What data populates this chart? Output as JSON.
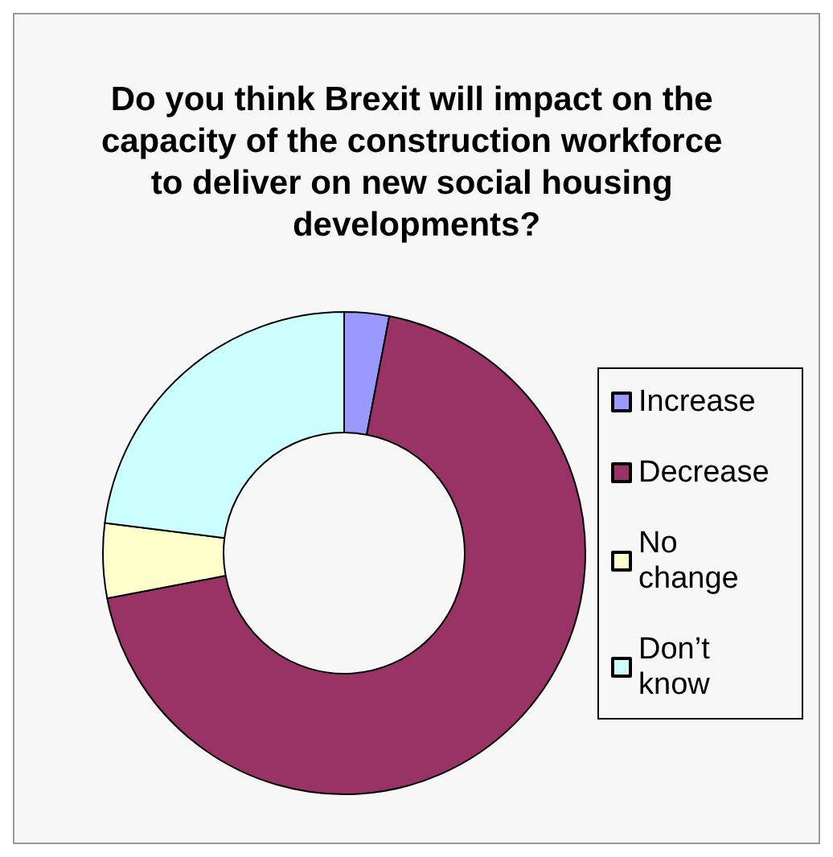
{
  "chart_data": {
    "type": "donut",
    "title": "Do you think Brexit will impact on the capacity of the construction workforce to deliver on new social housing developments?",
    "categories": [
      "Increase",
      "Decrease",
      "No change",
      "Don’t know"
    ],
    "values": [
      3,
      69,
      5,
      23
    ],
    "colors": [
      "#9999ff",
      "#993366",
      "#ffffcc",
      "#ccffff"
    ],
    "legend": "right"
  }
}
